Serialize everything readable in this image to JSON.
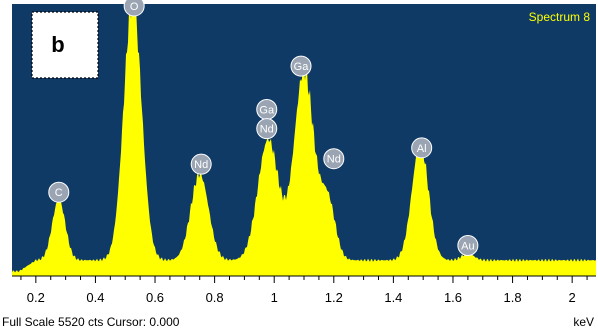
{
  "chart_data": {
    "type": "area",
    "title": "Spectrum 8",
    "panel_label": "b",
    "xlabel": "keV",
    "xlim": [
      0.12,
      2.08
    ],
    "ylim": [
      0,
      5520
    ],
    "x_ticks": [
      "0.2",
      "0.4",
      "0.6",
      "0.8",
      "1",
      "1.2",
      "1.4",
      "1.6",
      "1.8",
      "2"
    ],
    "x_tick_values": [
      0.2,
      0.4,
      0.6,
      0.8,
      1.0,
      1.2,
      1.4,
      1.6,
      1.8,
      2.0
    ],
    "baseline_counts": 320,
    "peaks": [
      {
        "element": "C",
        "energy": 0.277,
        "counts": 1230,
        "width": 0.022
      },
      {
        "element": "O",
        "energy": 0.525,
        "counts": 5280,
        "width": 0.03
      },
      {
        "element": "Nd",
        "energy": 0.75,
        "counts": 1750,
        "width": 0.03
      },
      {
        "element": "Nd",
        "energy": 0.98,
        "counts": 2450,
        "width": 0.035
      },
      {
        "element": "Ga",
        "energy": 1.1,
        "counts": 3850,
        "width": 0.033
      },
      {
        "element": "Nd",
        "energy": 1.18,
        "counts": 1200,
        "width": 0.025
      },
      {
        "element": "Al",
        "energy": 1.49,
        "counts": 2350,
        "width": 0.028
      },
      {
        "element": "Au",
        "energy": 1.65,
        "counts": 140,
        "width": 0.02
      }
    ],
    "peak_labels": [
      {
        "text": "C",
        "energy": 0.277,
        "counts": 1700
      },
      {
        "text": "O",
        "energy": 0.53,
        "counts": 5480
      },
      {
        "text": "Nd",
        "energy": 0.755,
        "counts": 2270
      },
      {
        "text": "Ga",
        "energy": 0.975,
        "counts": 3380
      },
      {
        "text": "Nd",
        "energy": 0.975,
        "counts": 2990
      },
      {
        "text": "Ga",
        "energy": 1.09,
        "counts": 4260
      },
      {
        "text": "Nd",
        "energy": 1.2,
        "counts": 2380
      },
      {
        "text": "Al",
        "energy": 1.495,
        "counts": 2600
      },
      {
        "text": "Au",
        "energy": 1.65,
        "counts": 620
      }
    ],
    "colors": {
      "background": "#0f3a66",
      "spectrum": "#ffff00",
      "title": "#ffff00",
      "marker_fill": "#9aa4b2",
      "marker_stroke": "#ffffff"
    }
  },
  "footer": {
    "status_text": "Full Scale 5520 cts Cursor: 0.000",
    "unit": "keV"
  }
}
